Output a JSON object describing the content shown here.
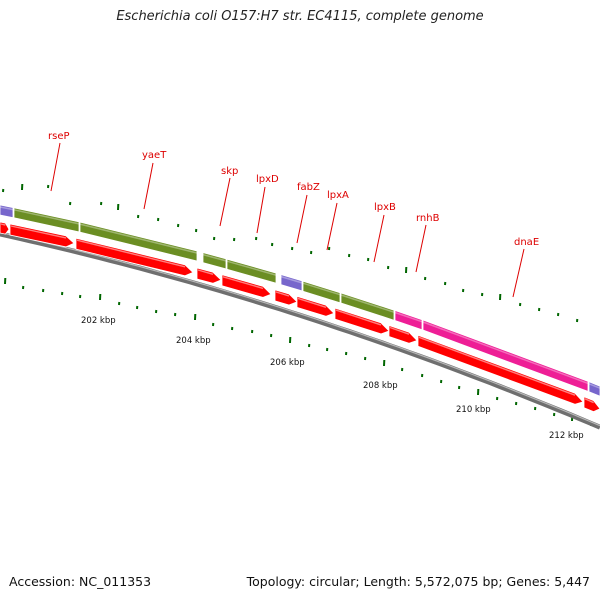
{
  "title": "Escherichia coli O157:H7 str. EC4115, complete genome",
  "accession_label": "Accession: NC_011353",
  "summary_label": "Topology: circular; Length: 5,572,075 bp; Genes: 5,447",
  "colors": {
    "label": "#dd0000",
    "cds": "#ff0000",
    "tick": "#006600",
    "backbone": "#707070"
  },
  "gene_labels": [
    "rseP",
    "yaeT",
    "skp",
    "lpxD",
    "fabZ",
    "lpxA",
    "lpxB",
    "rnhB",
    "dnaE"
  ],
  "kbp_labels": [
    "202 kbp",
    "204 kbp",
    "206 kbp",
    "208 kbp",
    "210 kbp",
    "212 kbp"
  ],
  "feature_track_colors": [
    "#7766cc",
    "#6b8e23",
    "#6b8e23",
    "#6b8e23",
    "#6b8e23",
    "#7766cc",
    "#6b8e23",
    "#6b8e23",
    "#ee1e96",
    "#ee1e96",
    "#7766cc"
  ]
}
